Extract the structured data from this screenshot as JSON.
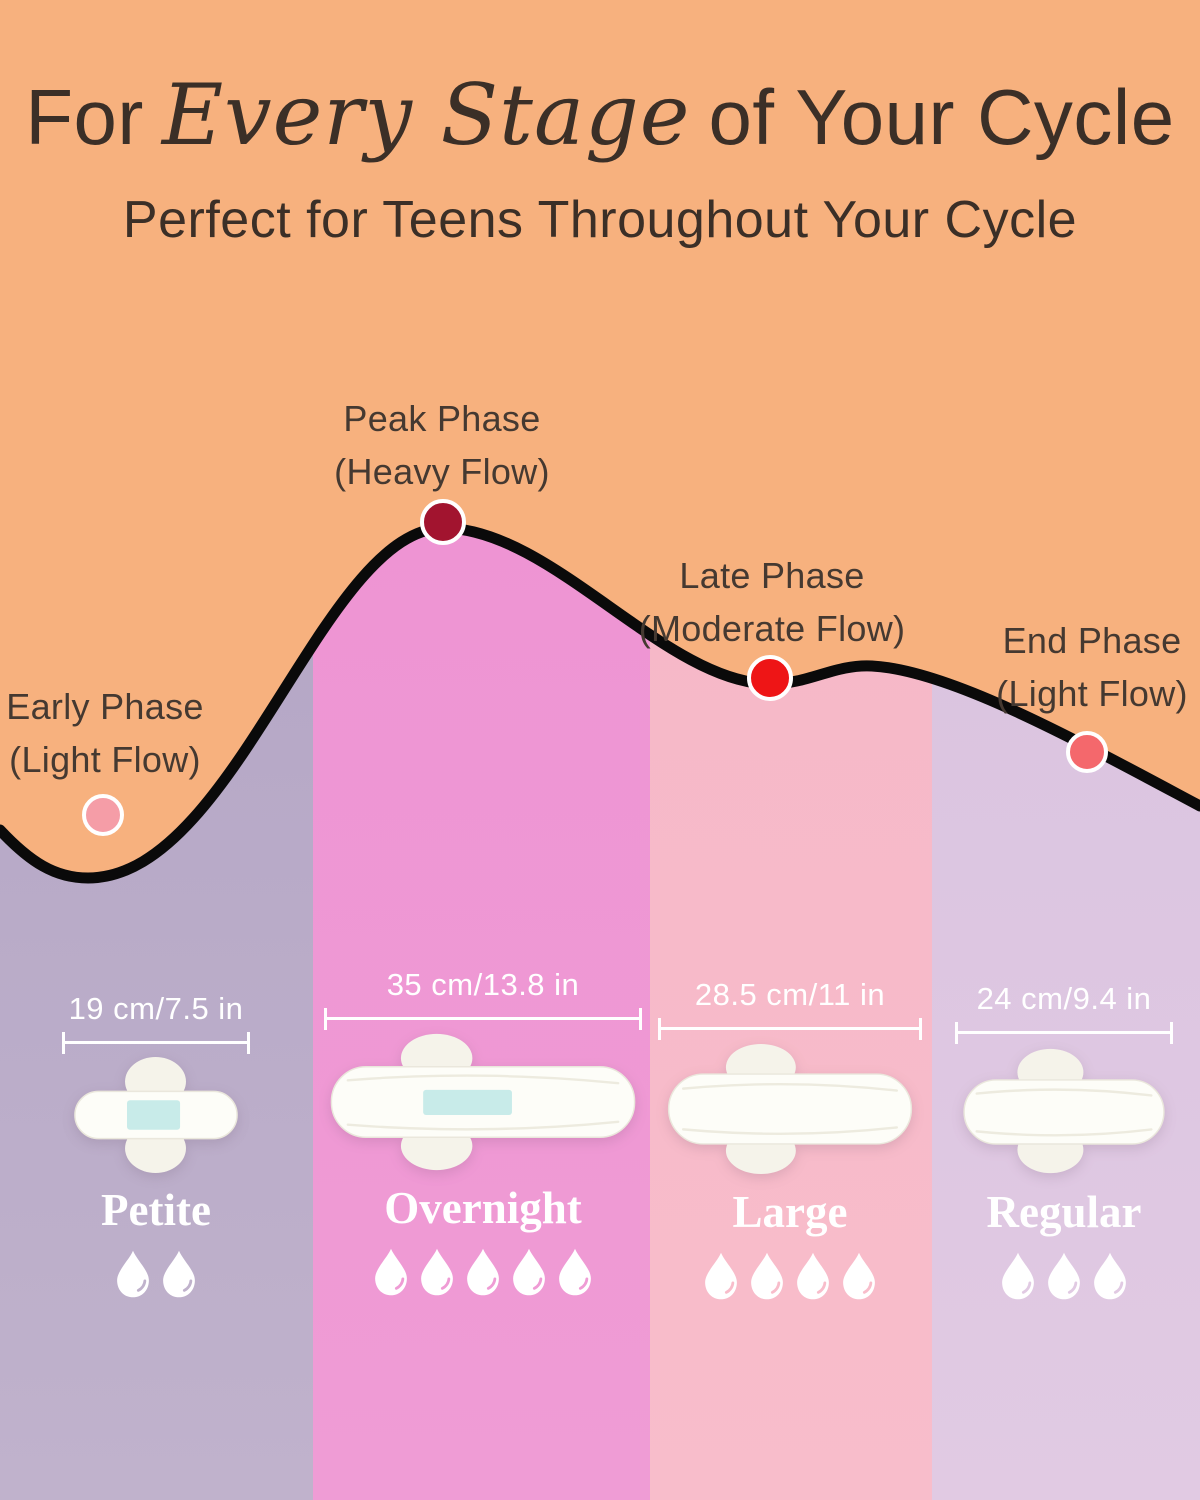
{
  "header": {
    "title_prefix": "For",
    "title_script": "Every Stage",
    "title_suffix": "of Your Cycle",
    "subtitle": "Perfect for Teens Throughout Your Cycle"
  },
  "colors": {
    "background_orange": "#f7b17e",
    "curve_black": "#0a0a0a",
    "heading_text": "#3b2f27",
    "phase_text": "#453931",
    "pad_core": "#c8ebe9",
    "measure_white": "#ffffff"
  },
  "phases": [
    {
      "name": "Early Phase",
      "flow": "(Light Flow)",
      "dot_color": "#f59da7"
    },
    {
      "name": "Peak Phase",
      "flow": "(Heavy Flow)",
      "dot_color": "#a2142f"
    },
    {
      "name": "Late Phase",
      "flow": "(Moderate Flow)",
      "dot_color": "#ee1516"
    },
    {
      "name": "End Phase",
      "flow": "(Light Flow)",
      "dot_color": "#f4686c"
    }
  ],
  "products": [
    {
      "name": "Petite",
      "size_label": "19 cm/7.5 in",
      "absorbency_drops": 2,
      "column_color_top": "#aea0c2",
      "column_color_bottom": "#c0b2cc"
    },
    {
      "name": "Overnight",
      "size_label": "35 cm/13.8 in",
      "absorbency_drops": 5,
      "column_color_top": "#ee90d2",
      "column_color_bottom": "#ef9cd5"
    },
    {
      "name": "Large",
      "size_label": "28.5 cm/11 in",
      "absorbency_drops": 4,
      "column_color_top": "#f5b5c6",
      "column_color_bottom": "#f8bdcb"
    },
    {
      "name": "Regular",
      "size_label": "24 cm/9.4 in",
      "absorbency_drops": 3,
      "column_color_top": "#d6c0de",
      "column_color_bottom": "#e1cae3"
    }
  ]
}
